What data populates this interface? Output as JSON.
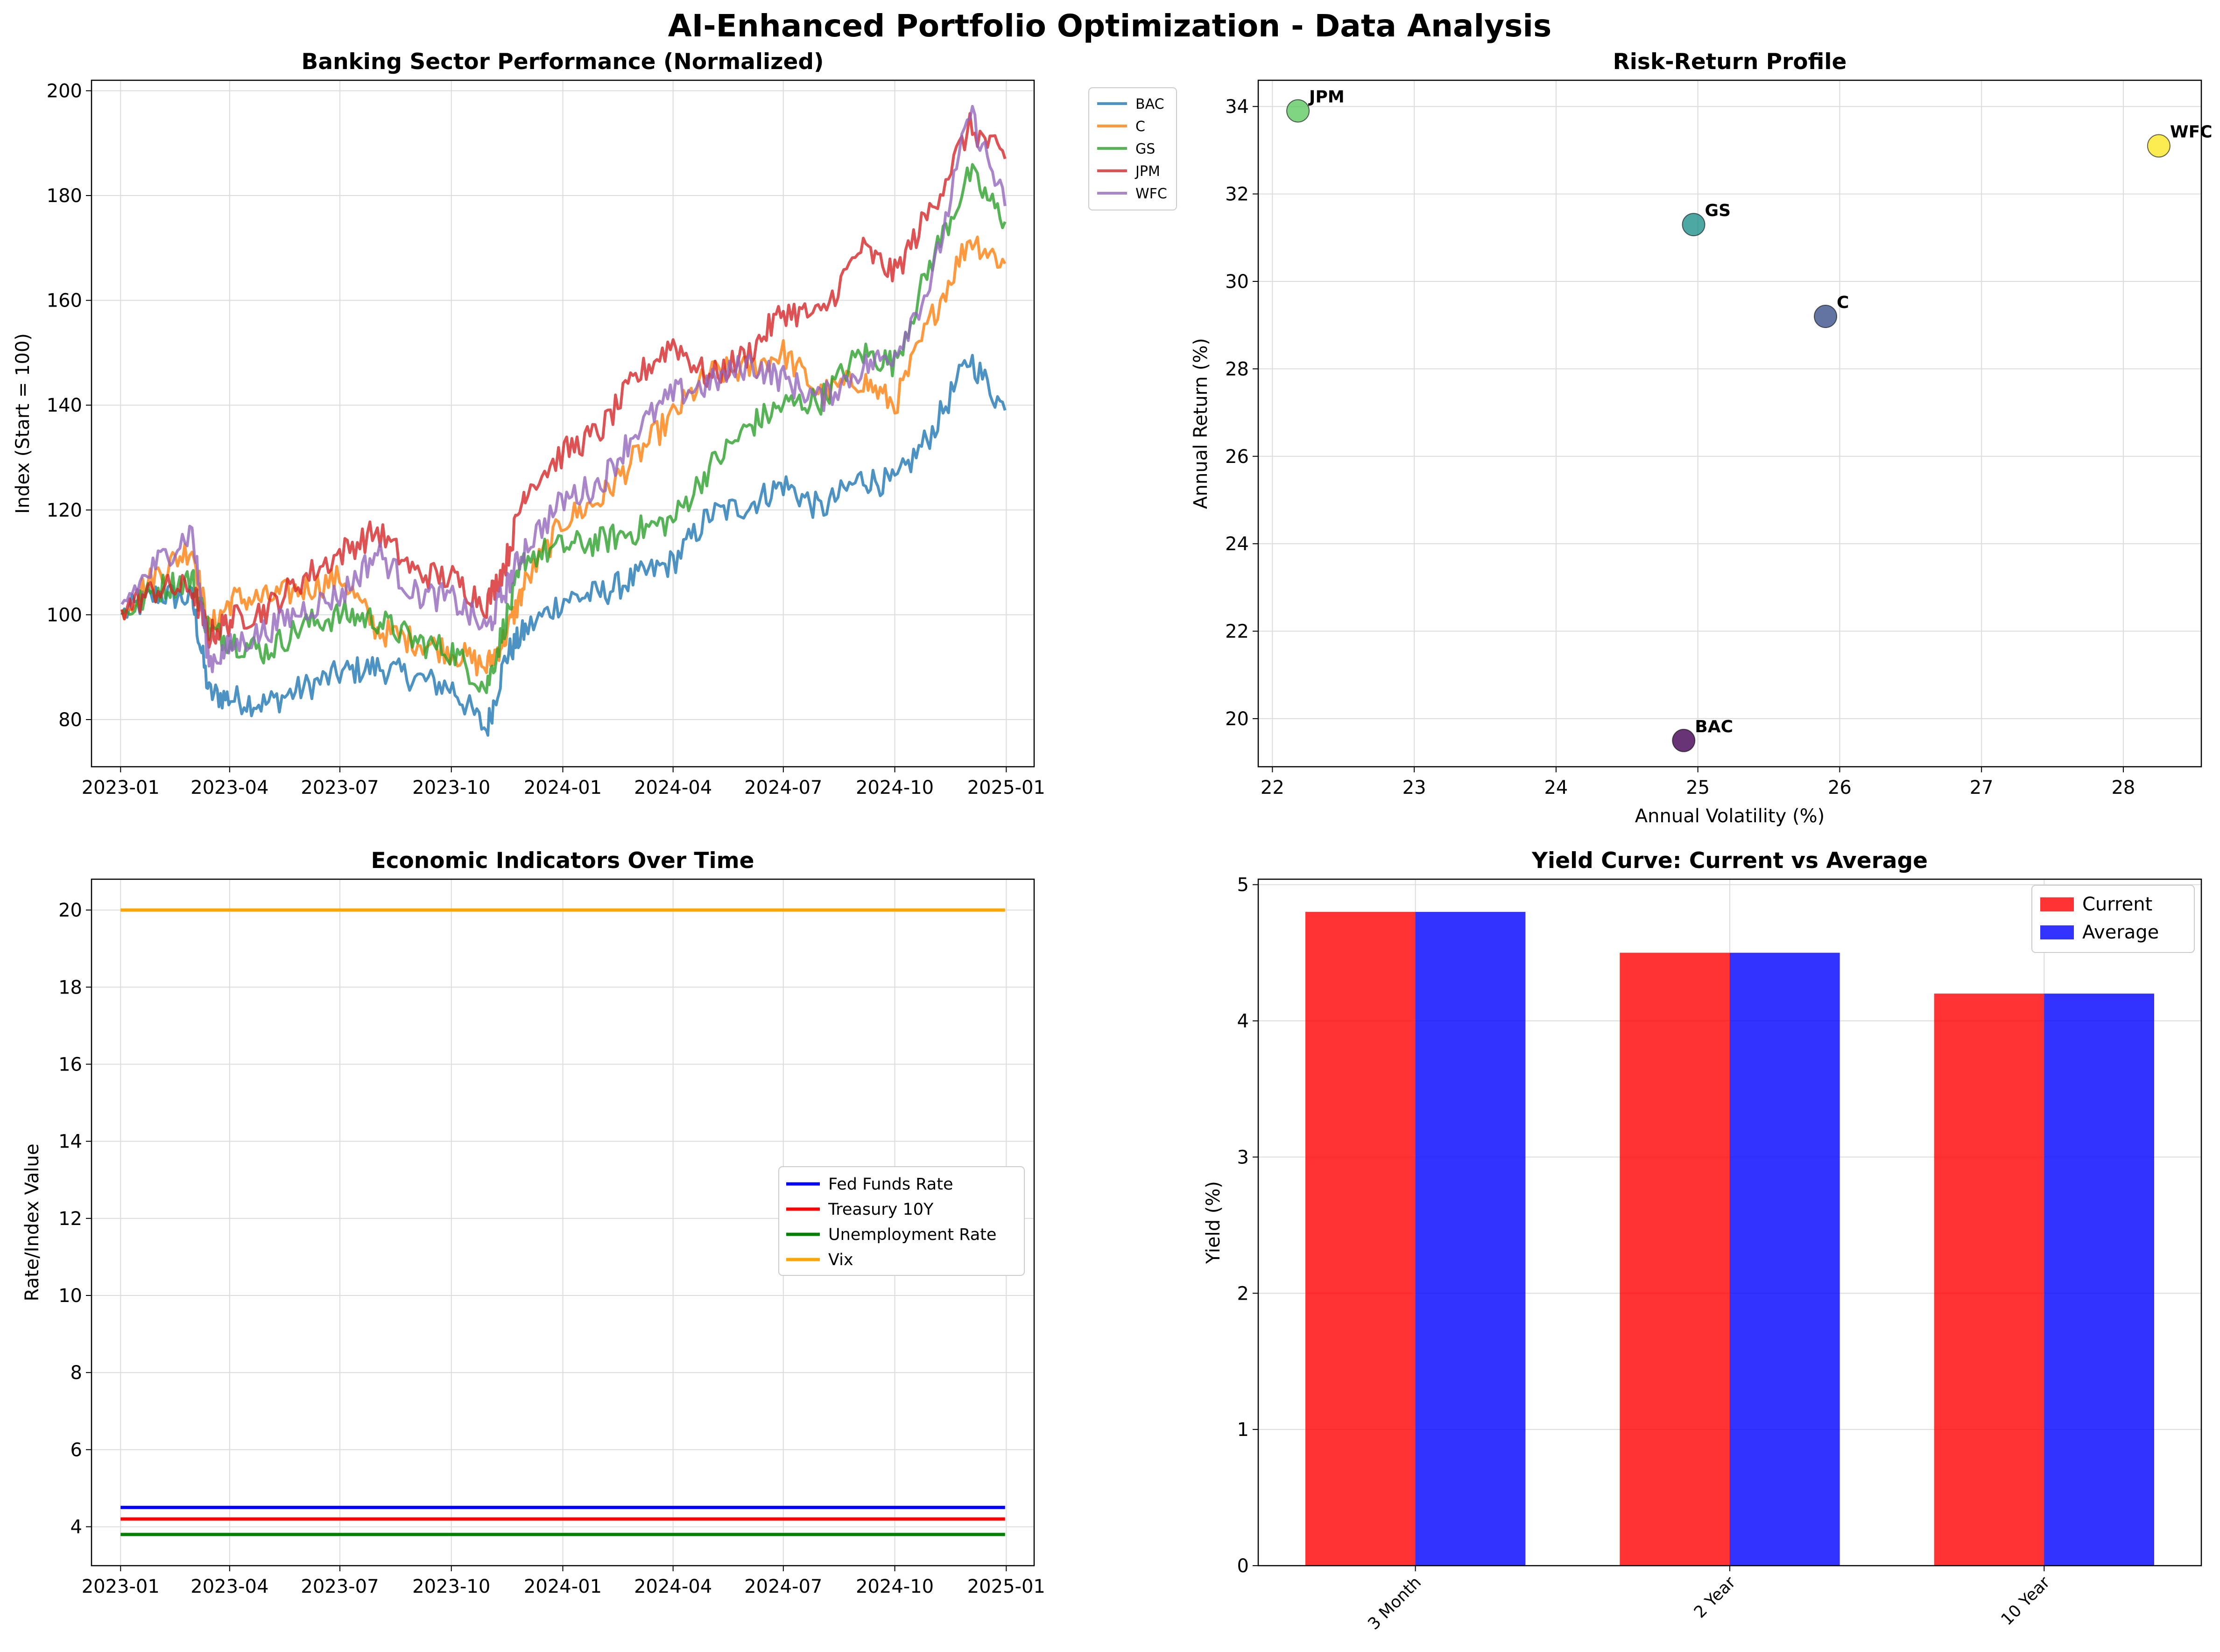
{
  "suptitle": "AI-Enhanced Portfolio Optimization - Data Analysis",
  "chart_data": [
    {
      "type": "line",
      "title": "Banking Sector Performance (Normalized)",
      "xlabel": "",
      "ylabel": "Index (Start = 100)",
      "ylim": [
        71,
        202
      ],
      "yticks": [
        80,
        100,
        120,
        140,
        160,
        180,
        200
      ],
      "xticks": [
        "2023-01",
        "2023-04",
        "2023-07",
        "2023-10",
        "2024-01",
        "2024-04",
        "2024-07",
        "2024-10",
        "2025-01"
      ],
      "xrange": [
        "2022-12-08",
        "2025-01-24"
      ],
      "grid": true,
      "legend": "outside-right-top",
      "x": [
        "2023-01-02",
        "2023-02-01",
        "2023-03-01",
        "2023-03-15",
        "2023-04-03",
        "2023-05-01",
        "2023-06-01",
        "2023-07-03",
        "2023-08-01",
        "2023-09-01",
        "2023-10-02",
        "2023-10-30",
        "2023-11-15",
        "2023-12-01",
        "2024-01-02",
        "2024-02-01",
        "2024-03-01",
        "2024-04-01",
        "2024-05-01",
        "2024-06-03",
        "2024-07-01",
        "2024-08-01",
        "2024-09-03",
        "2024-10-01",
        "2024-11-01",
        "2024-12-02",
        "2024-12-31"
      ],
      "series": [
        {
          "name": "BAC",
          "color": "#1f77b4",
          "values": [
            100,
            104,
            103,
            85,
            84,
            83,
            86,
            89,
            90,
            88,
            86,
            78,
            92,
            97,
            103,
            104,
            107,
            110,
            119,
            121,
            125,
            120,
            126,
            125,
            135,
            149,
            139
          ]
        },
        {
          "name": "C",
          "color": "#ff7f0e",
          "values": [
            101,
            108,
            113,
            97,
            103,
            103,
            105,
            107,
            97,
            95,
            93,
            90,
            96,
            106,
            118,
            122,
            130,
            138,
            146,
            147,
            150,
            142,
            145,
            140,
            157,
            172,
            167
          ]
        },
        {
          "name": "GS",
          "color": "#2ca02c",
          "values": [
            100,
            105,
            107,
            97,
            95,
            93,
            98,
            100,
            99,
            95,
            93,
            86,
            99,
            111,
            113,
            114,
            116,
            118,
            128,
            136,
            140,
            141,
            150,
            148,
            168,
            184,
            175
          ]
        },
        {
          "name": "JPM",
          "color": "#d62728",
          "values": [
            101,
            105,
            105,
            96,
            99,
            101,
            107,
            112,
            116,
            108,
            107,
            102,
            110,
            124,
            131,
            135,
            145,
            152,
            145,
            150,
            158,
            157,
            170,
            165,
            178,
            193,
            187
          ]
        },
        {
          "name": "WFC",
          "color": "#9467bd",
          "values": [
            102,
            110,
            116,
            91,
            94,
            97,
            101,
            104,
            112,
            104,
            103,
            97,
            105,
            113,
            122,
            125,
            135,
            142,
            144,
            148,
            145,
            141,
            147,
            150,
            164,
            196,
            178
          ]
        }
      ]
    },
    {
      "type": "scatter",
      "title": "Risk-Return Profile",
      "xlabel": "Annual Volatility (%)",
      "ylabel": "Annual Return (%)",
      "xlim": [
        21.9,
        28.55
      ],
      "ylim": [
        18.9,
        34.6
      ],
      "xticks": [
        22,
        23,
        24,
        25,
        26,
        27,
        28
      ],
      "yticks": [
        20,
        22,
        24,
        26,
        28,
        30,
        32,
        34
      ],
      "grid": true,
      "points": [
        {
          "label": "BAC",
          "x": 24.9,
          "y": 19.5,
          "color": "#440154"
        },
        {
          "label": "C",
          "x": 25.9,
          "y": 29.2,
          "color": "#3b528b"
        },
        {
          "label": "GS",
          "x": 24.97,
          "y": 31.3,
          "color": "#21918c"
        },
        {
          "label": "JPM",
          "x": 22.18,
          "y": 33.9,
          "color": "#5ec962"
        },
        {
          "label": "WFC",
          "x": 28.25,
          "y": 33.1,
          "color": "#fde725"
        }
      ]
    },
    {
      "type": "line",
      "title": "Economic Indicators Over Time",
      "xlabel": "",
      "ylabel": "Rate/Index Value",
      "ylim": [
        2.99,
        20.8
      ],
      "yticks": [
        4,
        6,
        8,
        10,
        12,
        14,
        16,
        18,
        20
      ],
      "xticks": [
        "2023-01",
        "2023-04",
        "2023-07",
        "2023-10",
        "2024-01",
        "2024-04",
        "2024-07",
        "2024-10",
        "2025-01"
      ],
      "xrange": [
        "2022-12-08",
        "2025-01-24"
      ],
      "grid": true,
      "legend": "center-right",
      "x": [
        "2023-01-01",
        "2024-12-31"
      ],
      "series": [
        {
          "name": "Fed Funds Rate",
          "color": "#0000ff",
          "values": [
            4.5,
            4.5
          ]
        },
        {
          "name": "Treasury 10Y",
          "color": "#ff0000",
          "values": [
            4.2,
            4.2
          ]
        },
        {
          "name": "Unemployment Rate",
          "color": "#008000",
          "values": [
            3.8,
            3.8
          ]
        },
        {
          "name": "Vix",
          "color": "#ffa500",
          "values": [
            20.0,
            20.0
          ]
        }
      ]
    },
    {
      "type": "bar",
      "title": "Yield Curve: Current vs Average",
      "xlabel": "",
      "ylabel": "Yield (%)",
      "ylim": [
        0,
        5.04
      ],
      "yticks": [
        0,
        1,
        2,
        3,
        4,
        5
      ],
      "grid": true,
      "legend": "top-right",
      "categories": [
        "3 Month",
        "2 Year",
        "10 Year"
      ],
      "series": [
        {
          "name": "Current",
          "color": "#ff0000",
          "values": [
            4.8,
            4.5,
            4.2
          ]
        },
        {
          "name": "Average",
          "color": "#0000ff",
          "values": [
            4.8,
            4.5,
            4.2
          ]
        }
      ]
    }
  ]
}
